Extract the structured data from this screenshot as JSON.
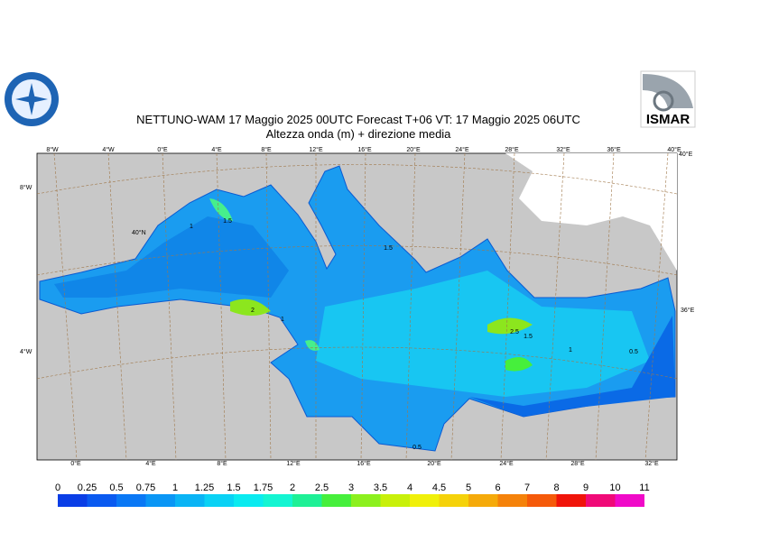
{
  "header": {
    "title": "NETTUNO-WAM  17   Maggio  2025 00UTC Forecast T+06 VT: 17   Maggio  2025 06UTC",
    "subtitle": "Altezza onda (m) + direzione media",
    "logo_text": "ISMAR"
  },
  "map": {
    "top_labels": [
      "8°W",
      "4°W",
      "0°E",
      "4°E",
      "8°E",
      "12°E",
      "16°E",
      "20°E",
      "24°E",
      "28°E",
      "32°E",
      "36°E",
      "40°E"
    ],
    "bottom_labels": [
      "0°E",
      "4°E",
      "8°E",
      "12°E",
      "16°E",
      "20°E",
      "24°E",
      "28°E",
      "32°E"
    ],
    "left_labels": [
      "8°W",
      "40°N",
      "4°W"
    ],
    "right_labels": [
      "40°E",
      "36°E"
    ],
    "contour_labels": [
      "1.5",
      "1",
      "2",
      "1",
      "1.5",
      "2.5",
      "1.5",
      "1",
      "0.5",
      "0.5"
    ]
  },
  "legend": {
    "ticks": [
      0,
      0.25,
      0.5,
      0.75,
      1,
      1.25,
      1.5,
      1.75,
      2,
      2.5,
      3,
      3.5,
      4,
      4.5,
      5,
      6,
      7,
      8,
      9,
      10,
      11
    ],
    "colors": [
      "#0a3ee6",
      "#0a5af0",
      "#0a78f5",
      "#0a96f5",
      "#0ab4f5",
      "#0ad2f5",
      "#0aebf0",
      "#14f5d2",
      "#1ef096",
      "#46ef3c",
      "#8cf01e",
      "#c8f00a",
      "#f0f00a",
      "#f5d20a",
      "#f5aa0a",
      "#f5820a",
      "#f55a0a",
      "#f0140a",
      "#f00a78",
      "#f00ac8"
    ]
  }
}
